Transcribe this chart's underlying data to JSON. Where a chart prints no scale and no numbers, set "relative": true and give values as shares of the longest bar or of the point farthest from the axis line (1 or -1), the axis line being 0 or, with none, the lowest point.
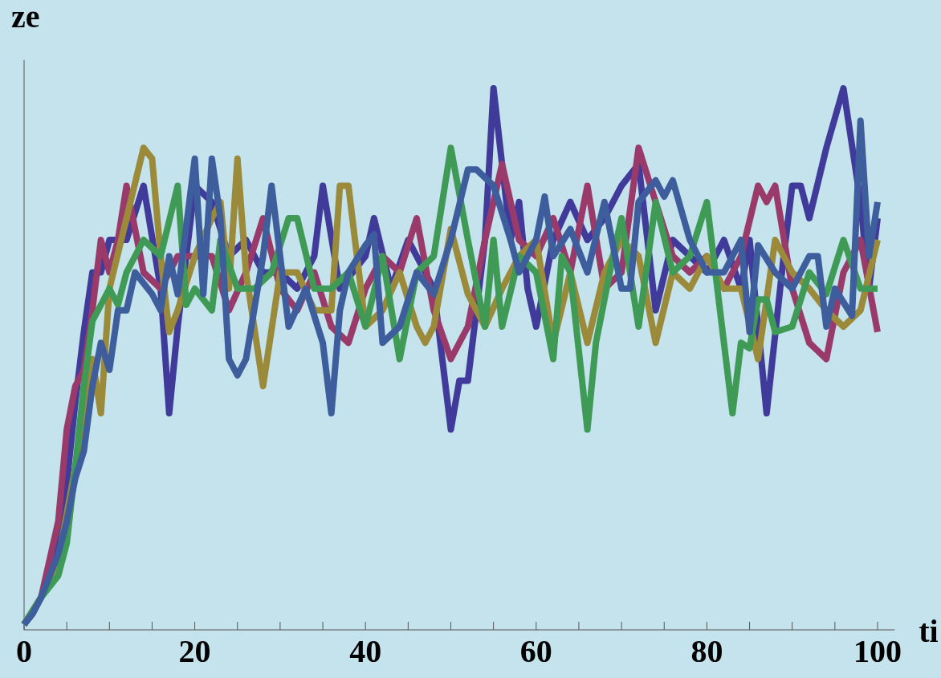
{
  "chart_data": {
    "type": "line",
    "xlabel": "ti",
    "ylabel": "ze",
    "relative": true,
    "xlim": [
      0,
      102
    ],
    "xticks": [
      0,
      {
        "value": 5,
        "label": null
      },
      {
        "value": 10,
        "label": null
      },
      {
        "value": 15,
        "label": null
      },
      20,
      {
        "value": 25,
        "label": null
      },
      {
        "value": 30,
        "label": null
      },
      {
        "value": 35,
        "label": null
      },
      40,
      {
        "value": 45,
        "label": null
      },
      {
        "value": 50,
        "label": null
      },
      {
        "value": 55,
        "label": null
      },
      60,
      {
        "value": 65,
        "label": null
      },
      {
        "value": 70,
        "label": null
      },
      {
        "value": 75,
        "label": null
      },
      80,
      {
        "value": 85,
        "label": null
      },
      {
        "value": 90,
        "label": null
      },
      {
        "value": 95,
        "label": null
      },
      100
    ],
    "grid": false,
    "marker": "none",
    "line_style": "solid",
    "series": [
      {
        "color": "#403a9a",
        "x": [
          0,
          1,
          2,
          3,
          4,
          5,
          6,
          7,
          8,
          9,
          10,
          12,
          14,
          16,
          17,
          18,
          20,
          22,
          24,
          26,
          28,
          30,
          32,
          34,
          35,
          37,
          40,
          41,
          43,
          45,
          48,
          50,
          51,
          52,
          54,
          55,
          57,
          58,
          59,
          60,
          62,
          64,
          66,
          68,
          70,
          72,
          74,
          76,
          78,
          80,
          82,
          84,
          85,
          87,
          89,
          90,
          91,
          92,
          94,
          96,
          98,
          99,
          100
        ],
        "values": [
          0.01,
          0.03,
          0.06,
          0.1,
          0.16,
          0.27,
          0.42,
          0.55,
          0.66,
          0.66,
          0.72,
          0.72,
          0.82,
          0.63,
          0.4,
          0.56,
          0.82,
          0.79,
          0.69,
          0.72,
          0.66,
          0.66,
          0.63,
          0.69,
          0.82,
          0.63,
          0.69,
          0.76,
          0.63,
          0.72,
          0.63,
          0.37,
          0.46,
          0.46,
          0.72,
          1.0,
          0.72,
          0.79,
          0.63,
          0.56,
          0.72,
          0.79,
          0.72,
          0.76,
          0.82,
          0.86,
          0.59,
          0.72,
          0.69,
          0.66,
          0.72,
          0.63,
          0.72,
          0.4,
          0.69,
          0.82,
          0.82,
          0.76,
          0.89,
          1.0,
          0.79,
          0.63,
          0.76
        ]
      },
      {
        "color": "#993a6a",
        "x": [
          0,
          2,
          4,
          5,
          6,
          7,
          8,
          9,
          10,
          11,
          12,
          14,
          16,
          18,
          20,
          22,
          24,
          26,
          28,
          30,
          32,
          34,
          36,
          38,
          40,
          42,
          44,
          46,
          48,
          50,
          52,
          54,
          56,
          58,
          60,
          62,
          64,
          66,
          68,
          70,
          72,
          74,
          76,
          78,
          80,
          82,
          84,
          86,
          87,
          88,
          90,
          92,
          94,
          96,
          98,
          100
        ],
        "values": [
          0.01,
          0.06,
          0.2,
          0.37,
          0.45,
          0.48,
          0.59,
          0.72,
          0.66,
          0.72,
          0.82,
          0.66,
          0.63,
          0.69,
          0.69,
          0.69,
          0.59,
          0.66,
          0.76,
          0.63,
          0.59,
          0.66,
          0.56,
          0.53,
          0.63,
          0.69,
          0.66,
          0.76,
          0.59,
          0.5,
          0.56,
          0.72,
          0.86,
          0.72,
          0.69,
          0.76,
          0.66,
          0.82,
          0.63,
          0.66,
          0.89,
          0.79,
          0.69,
          0.66,
          0.69,
          0.63,
          0.69,
          0.82,
          0.79,
          0.82,
          0.63,
          0.53,
          0.5,
          0.66,
          0.72,
          0.55
        ]
      },
      {
        "color": "#9a8a3a",
        "x": [
          0,
          2,
          4,
          6,
          8,
          9,
          10,
          12,
          14,
          15,
          16,
          17,
          18,
          20,
          22,
          23,
          24,
          25,
          26,
          28,
          30,
          32,
          34,
          36,
          37,
          38,
          40,
          42,
          44,
          46,
          47,
          48,
          50,
          52,
          54,
          56,
          58,
          60,
          62,
          64,
          66,
          68,
          70,
          72,
          74,
          76,
          78,
          80,
          82,
          84,
          86,
          88,
          90,
          92,
          94,
          96,
          98,
          100
        ],
        "values": [
          0.01,
          0.06,
          0.13,
          0.3,
          0.5,
          0.4,
          0.63,
          0.76,
          0.89,
          0.87,
          0.69,
          0.55,
          0.59,
          0.69,
          0.76,
          0.79,
          0.63,
          0.87,
          0.66,
          0.45,
          0.66,
          0.66,
          0.59,
          0.59,
          0.82,
          0.82,
          0.56,
          0.59,
          0.66,
          0.56,
          0.53,
          0.56,
          0.74,
          0.62,
          0.56,
          0.63,
          0.69,
          0.72,
          0.53,
          0.66,
          0.53,
          0.66,
          0.72,
          0.69,
          0.53,
          0.66,
          0.63,
          0.69,
          0.63,
          0.63,
          0.5,
          0.72,
          0.66,
          0.63,
          0.59,
          0.56,
          0.59,
          0.72
        ]
      },
      {
        "color": "#3e9a55",
        "x": [
          0,
          2,
          4,
          5,
          6,
          7,
          8,
          9,
          10,
          11,
          12,
          14,
          16,
          18,
          19,
          20,
          22,
          23,
          25,
          27,
          29,
          31,
          32,
          34,
          36,
          38,
          40,
          42,
          44,
          46,
          48,
          50,
          52,
          54,
          55,
          56,
          58,
          60,
          62,
          63,
          64,
          66,
          67,
          69,
          70,
          72,
          74,
          76,
          78,
          80,
          82,
          83,
          84,
          85,
          86,
          87,
          88,
          90,
          92,
          94,
          96,
          98,
          100
        ],
        "values": [
          0.01,
          0.06,
          0.1,
          0.16,
          0.3,
          0.45,
          0.57,
          0.6,
          0.63,
          0.6,
          0.66,
          0.72,
          0.69,
          0.82,
          0.6,
          0.63,
          0.59,
          0.72,
          0.63,
          0.63,
          0.66,
          0.76,
          0.76,
          0.63,
          0.63,
          0.66,
          0.56,
          0.69,
          0.5,
          0.66,
          0.69,
          0.89,
          0.72,
          0.56,
          0.72,
          0.56,
          0.69,
          0.66,
          0.5,
          0.69,
          0.66,
          0.37,
          0.53,
          0.69,
          0.76,
          0.56,
          0.79,
          0.66,
          0.69,
          0.79,
          0.53,
          0.4,
          0.53,
          0.52,
          0.61,
          0.61,
          0.55,
          0.56,
          0.66,
          0.62,
          0.72,
          0.63,
          0.63
        ]
      },
      {
        "color": "#3d5d9c",
        "x": [
          0,
          1,
          2,
          3,
          4,
          5,
          6,
          7,
          8,
          9,
          10,
          11,
          12,
          13,
          15,
          16,
          17,
          18,
          20,
          21,
          22,
          23,
          24,
          25,
          26,
          28,
          29,
          30,
          31,
          33,
          35,
          36,
          37,
          38,
          40,
          41,
          42,
          44,
          46,
          48,
          50,
          52,
          53,
          55,
          57,
          58,
          60,
          61,
          62,
          64,
          66,
          68,
          70,
          71,
          72,
          74,
          75,
          76,
          78,
          79,
          80,
          82,
          84,
          85,
          86,
          88,
          90,
          92,
          93,
          94,
          95,
          97,
          98,
          99,
          100
        ],
        "values": [
          0.01,
          0.03,
          0.06,
          0.1,
          0.14,
          0.2,
          0.28,
          0.33,
          0.45,
          0.53,
          0.48,
          0.59,
          0.59,
          0.66,
          0.62,
          0.59,
          0.69,
          0.62,
          0.87,
          0.62,
          0.87,
          0.76,
          0.5,
          0.47,
          0.5,
          0.69,
          0.82,
          0.69,
          0.56,
          0.63,
          0.53,
          0.4,
          0.59,
          0.66,
          0.71,
          0.73,
          0.53,
          0.56,
          0.66,
          0.62,
          0.72,
          0.85,
          0.85,
          0.82,
          0.72,
          0.66,
          0.72,
          0.8,
          0.69,
          0.74,
          0.66,
          0.79,
          0.63,
          0.63,
          0.79,
          0.83,
          0.8,
          0.83,
          0.72,
          0.69,
          0.66,
          0.66,
          0.72,
          0.55,
          0.71,
          0.66,
          0.63,
          0.69,
          0.69,
          0.56,
          0.63,
          0.58,
          0.94,
          0.69,
          0.79
        ]
      }
    ]
  }
}
